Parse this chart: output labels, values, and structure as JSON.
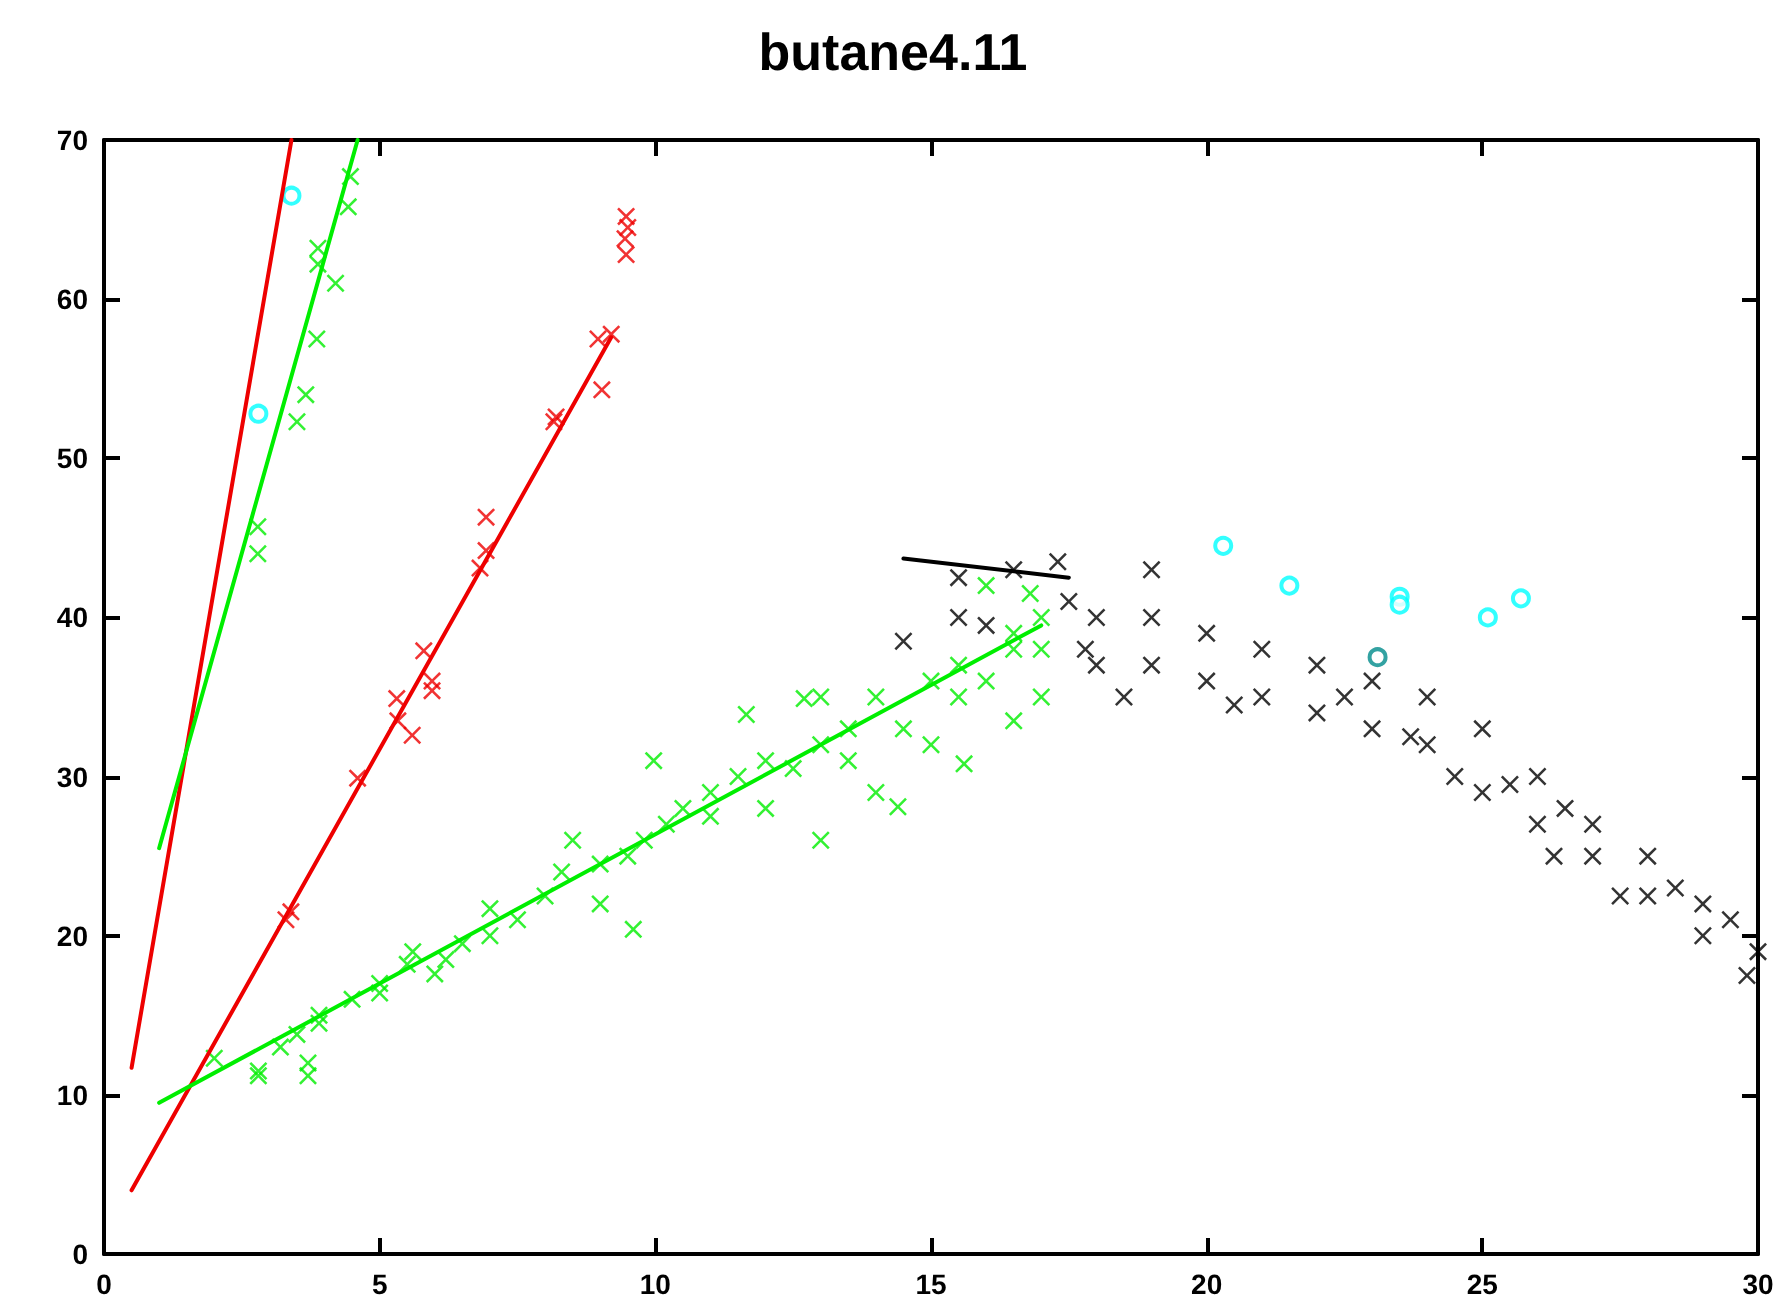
{
  "chart_data": {
    "type": "scatter",
    "title": "butane4.11",
    "xlim": [
      0,
      30
    ],
    "ylim": [
      0,
      70
    ],
    "xticks": [
      0,
      5,
      10,
      15,
      20,
      25,
      30
    ],
    "yticks": [
      0,
      10,
      20,
      30,
      40,
      50,
      60,
      70
    ],
    "grid": false,
    "series": [
      {
        "marker": "cross",
        "color": "#00ee00",
        "x": [
          2.79,
          2.79,
          3.5,
          3.66,
          3.86,
          4.2,
          3.88,
          3.88,
          4.43,
          4.47
        ],
        "values": [
          44,
          45.7,
          52.3,
          54,
          57.5,
          61,
          62.2,
          63.2,
          65.8,
          67.7
        ]
      },
      {
        "marker": "cross",
        "color": "#ee0000",
        "x": [
          3.39,
          3.3,
          4.6,
          5.31,
          5.33,
          5.59,
          5.8,
          5.95,
          5.95,
          6.93,
          6.93,
          6.82,
          8.16,
          8.2,
          9.03,
          8.96,
          9.2,
          9.47,
          9.45,
          9.5,
          9.47
        ],
        "values": [
          21.5,
          21,
          29.9,
          34.9,
          33.5,
          32.6,
          37.9,
          35.4,
          36,
          46.3,
          44.2,
          43.1,
          52.3,
          52.6,
          54.3,
          57.5,
          57.8,
          65.2,
          63.8,
          64.5,
          62.8
        ]
      },
      {
        "marker": "cross",
        "color": "#00ee00",
        "x": [
          2,
          2.8,
          2.8,
          3.2,
          3.5,
          3.7,
          3.7,
          3.9,
          3.9,
          4.5,
          5,
          5,
          5.5,
          5.6,
          6,
          6.2,
          6.5,
          7,
          7,
          7.5,
          8,
          8.3,
          8.5,
          9,
          9,
          9.5,
          9.6,
          9.8,
          9.97,
          10.2,
          10.5,
          11,
          11,
          11.5,
          11.65,
          12,
          12,
          12.5,
          12.7,
          13,
          13,
          13,
          13.5,
          13.5,
          14,
          14,
          14.4,
          14.5,
          15,
          15,
          15.5,
          15.5,
          15.6,
          16,
          16,
          16.5,
          16.5,
          16.5,
          16.8,
          17,
          17,
          17
        ],
        "values": [
          12.3,
          11.5,
          11.2,
          13,
          13.8,
          12,
          11.2,
          14.5,
          15,
          16,
          17,
          16.4,
          18.2,
          19,
          17.6,
          18.5,
          19.5,
          20,
          21.7,
          21,
          22.5,
          24,
          26,
          24.5,
          22,
          25,
          20.4,
          26,
          31,
          27,
          28,
          27.5,
          29,
          30,
          33.9,
          31,
          28,
          30.5,
          34.9,
          32,
          26,
          35,
          31,
          33,
          29,
          35,
          28.1,
          33,
          32,
          36,
          37,
          35,
          30.8,
          36,
          42,
          38,
          33.5,
          39,
          41.5,
          40,
          35,
          38
        ]
      },
      {
        "marker": "cross",
        "color": "#000000",
        "x": [
          14.5,
          15.5,
          15.5,
          16,
          16.5,
          17.3,
          17.5,
          17.8,
          18,
          18,
          18.5,
          19,
          19,
          19,
          20,
          20,
          20.5,
          21,
          21,
          22,
          22,
          22.5,
          23,
          23,
          23.7,
          24,
          24,
          24.5,
          25,
          25,
          25.5,
          26,
          26,
          26.3,
          26.5,
          27,
          27,
          27.5,
          28,
          28,
          28.5,
          29,
          29,
          29.5,
          29.8,
          30
        ],
        "values": [
          38.5,
          42.5,
          40,
          39.5,
          43,
          43.5,
          41,
          38,
          40,
          37,
          35,
          43,
          40,
          37,
          39,
          36,
          34.5,
          38,
          35,
          37,
          34,
          35,
          36,
          33,
          32.5,
          35,
          32,
          30,
          33,
          29,
          29.5,
          30,
          27,
          25,
          28,
          27,
          25,
          22.5,
          25,
          22.5,
          23,
          22,
          20,
          21,
          17.5,
          19
        ]
      },
      {
        "marker": "circle",
        "color": "#00ffff",
        "colors": [
          "#00ffff",
          "#00ffff",
          "#00ffff",
          "#00ffff",
          "#00ffff",
          "#00ffff",
          "#00ffff",
          "#00ffff",
          "#008b8b"
        ],
        "x": [
          2.8,
          3.4,
          20.3,
          21.5,
          23.5,
          23.5,
          25.1,
          25.7,
          23.1
        ],
        "values": [
          52.8,
          66.5,
          44.5,
          42,
          41.3,
          40.8,
          40,
          41.2,
          37.5
        ]
      },
      {
        "type": "line",
        "marker": "none",
        "color": "#ee0000",
        "x": [
          0.5,
          3.4
        ],
        "values": [
          11.7,
          70
        ]
      },
      {
        "type": "line",
        "marker": "none",
        "color": "#00ee00",
        "x": [
          1,
          4.6
        ],
        "values": [
          25.5,
          70
        ]
      },
      {
        "type": "line",
        "marker": "none",
        "color": "#ee0000",
        "x": [
          0.5,
          9.2
        ],
        "values": [
          4,
          57.6
        ]
      },
      {
        "type": "line",
        "marker": "none",
        "color": "#00ee00",
        "x": [
          1,
          17
        ],
        "values": [
          9.5,
          39.5
        ]
      },
      {
        "type": "line",
        "marker": "none",
        "color": "#000000",
        "x": [
          14.5,
          17.5
        ],
        "values": [
          43.7,
          42.5
        ]
      }
    ]
  }
}
